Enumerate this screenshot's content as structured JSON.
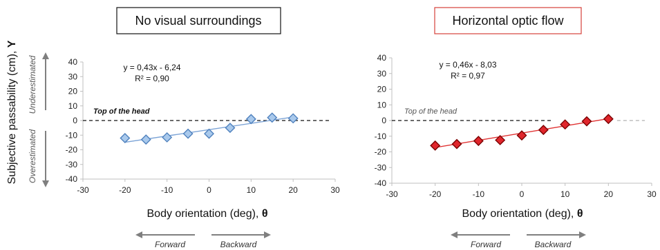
{
  "figure": {
    "ylabel": "Subjective passability (cm), ",
    "ylabel_symbol": "Y",
    "side_label_upper": "Underestimated",
    "side_label_lower": "Overestimated",
    "xlabel": "Body orientation (deg), ",
    "xlabel_symbol": "θ",
    "direction_left": "Forward",
    "direction_right": "Backward",
    "colors": {
      "blue_fill": "#a9c9ec",
      "blue_stroke": "#4f81bd",
      "blue_line": "#7ba3d6",
      "red_fill": "#e0262c",
      "red_stroke": "#7a0000",
      "red_line": "#e03030",
      "title2_border": "#d6403a",
      "arrow": "#7f7f7f"
    }
  },
  "chart_data": [
    {
      "type": "scatter",
      "title": "No visual surroundings",
      "xlim": [
        -30,
        30
      ],
      "ylim": [
        -40,
        40
      ],
      "xticks": [
        -30,
        -20,
        -10,
        0,
        10,
        20,
        30
      ],
      "yticks": [
        40,
        30,
        20,
        10,
        0,
        -10,
        -20,
        -30,
        -40
      ],
      "series": [
        {
          "x": [
            -20,
            -15,
            -10,
            -5,
            0,
            5,
            10,
            15,
            20
          ],
          "y": [
            -12,
            -13,
            -11.5,
            -9,
            -9,
            -5,
            1,
            2,
            1.5
          ]
        }
      ],
      "trendline": {
        "slope": 0.43,
        "intercept": -6.24,
        "x_range": [
          -20,
          20
        ]
      },
      "equation": "y = 0,43x - 6,24",
      "r2": "R² = 0,90",
      "reference_line": {
        "y": 0,
        "label": "Top of the head"
      },
      "marker": "diamond",
      "grid": false
    },
    {
      "type": "scatter",
      "title": "Horizontal optic flow",
      "xlim": [
        -30,
        30
      ],
      "ylim": [
        -40,
        40
      ],
      "xticks": [
        -30,
        -20,
        -10,
        0,
        10,
        20,
        30
      ],
      "yticks": [
        40,
        30,
        20,
        10,
        0,
        -10,
        -20,
        -30,
        -40
      ],
      "series": [
        {
          "x": [
            -20,
            -15,
            -10,
            -5,
            0,
            5,
            10,
            15,
            20
          ],
          "y": [
            -16,
            -15,
            -13,
            -12.5,
            -9.5,
            -6,
            -2.5,
            -0.5,
            1
          ]
        }
      ],
      "trendline": {
        "slope": 0.46,
        "intercept": -8.03,
        "x_range": [
          -20,
          20
        ]
      },
      "equation": "y = 0,46x - 8,03",
      "r2": "R² = 0,97",
      "reference_line": {
        "y": 0,
        "label": "Top of the head"
      },
      "marker": "diamond",
      "grid": false
    }
  ]
}
